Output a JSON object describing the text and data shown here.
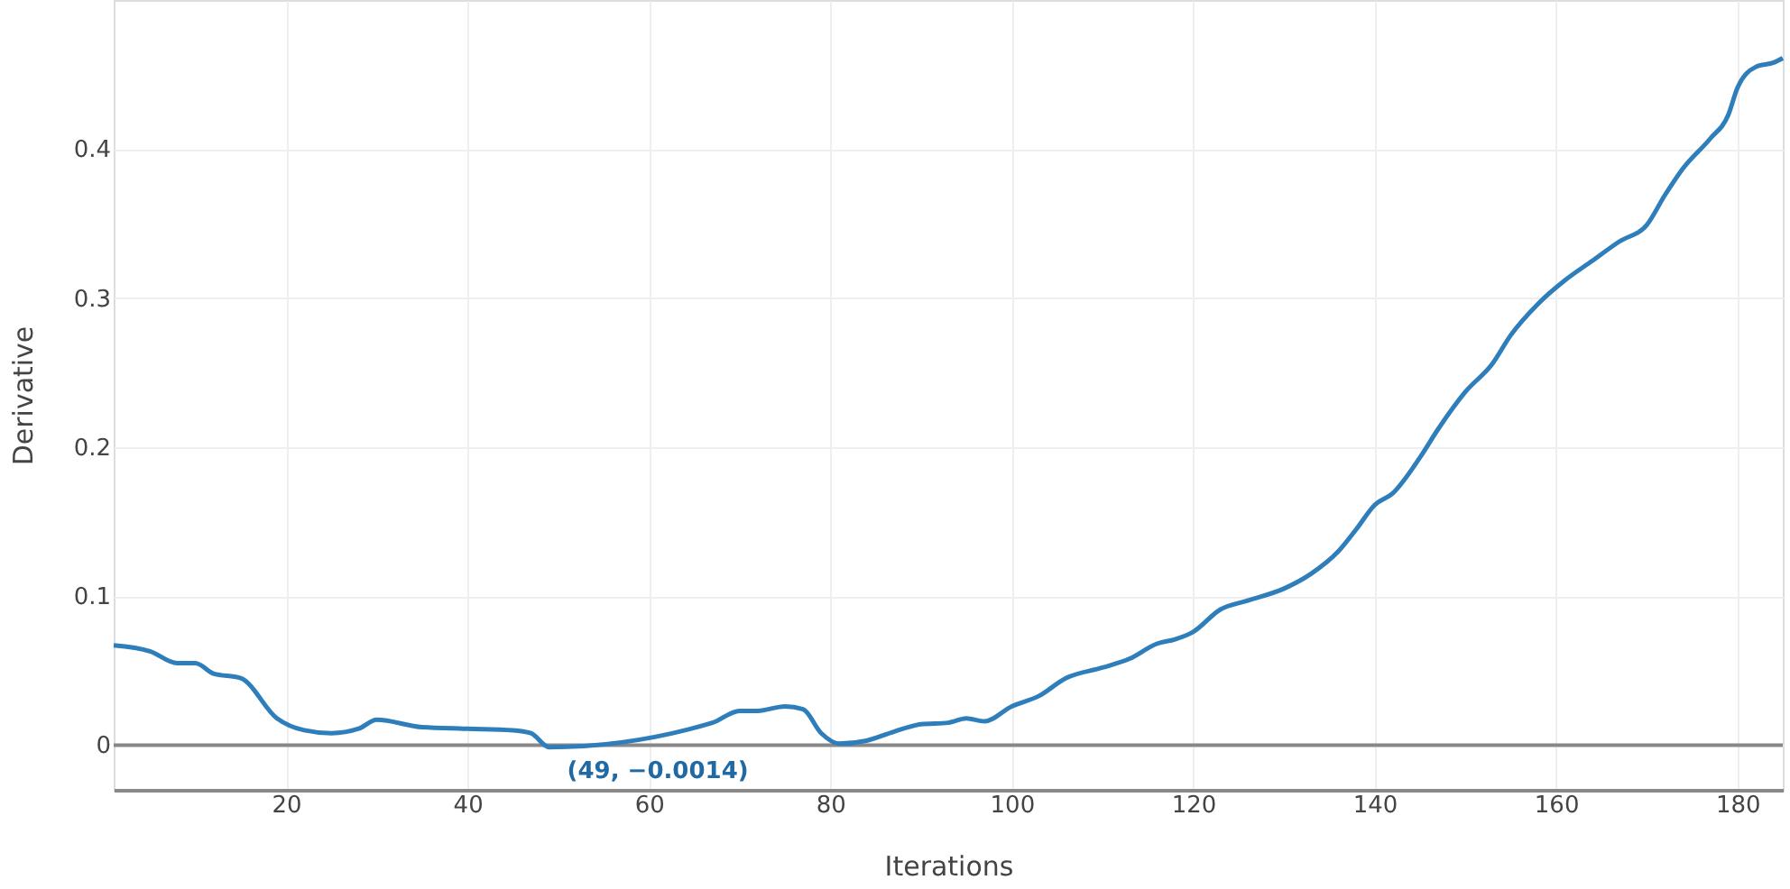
{
  "chart_data": {
    "type": "line",
    "xlabel": "Iterations",
    "ylabel": "Derivative",
    "x": [
      1,
      5,
      8,
      10,
      12,
      15,
      19,
      22,
      25,
      28,
      30,
      35,
      40,
      45,
      47,
      49,
      67,
      70,
      72,
      75,
      77,
      79,
      81,
      84,
      87,
      90,
      93,
      95,
      97,
      100,
      103,
      106,
      110,
      113,
      116,
      118,
      120,
      123,
      126,
      130,
      133,
      136,
      138,
      140,
      142,
      145,
      147,
      150,
      153,
      155,
      158,
      161,
      164,
      167,
      170,
      172,
      174,
      177,
      179,
      180,
      182,
      184,
      185
    ],
    "series": [
      {
        "color": "#2e7ebb",
        "values": [
          0.067,
          0.063,
          0.055,
          0.055,
          0.048,
          0.045,
          0.018,
          0.01,
          0.008,
          0.011,
          0.017,
          0.012,
          0.011,
          0.01,
          0.008,
          -0.0014,
          0.015,
          0.023,
          0.023,
          0.026,
          0.024,
          0.008,
          0.001,
          0.003,
          0.009,
          0.014,
          0.015,
          0.018,
          0.016,
          0.026,
          0.033,
          0.045,
          0.052,
          0.058,
          0.068,
          0.071,
          0.076,
          0.091,
          0.097,
          0.105,
          0.115,
          0.13,
          0.145,
          0.161,
          0.169,
          0.193,
          0.212,
          0.237,
          0.256,
          0.275,
          0.296,
          0.312,
          0.325,
          0.338,
          0.349,
          0.369,
          0.387,
          0.407,
          0.423,
          0.441,
          0.455,
          0.458,
          0.461
        ]
      }
    ],
    "xlim": [
      1,
      185
    ],
    "xticks": [
      20,
      40,
      60,
      80,
      100,
      120,
      140,
      160,
      180
    ],
    "ylim": [
      -0.03,
      0.5
    ],
    "yticks": [
      0,
      0.1,
      0.2,
      0.3,
      0.4
    ],
    "grid": true,
    "line_style": "solid",
    "marker": "none",
    "ref_lines": [
      {
        "axis": "y",
        "value": 0,
        "color": "#888888"
      }
    ],
    "annotations": [
      {
        "text": "(49, −0.0014)",
        "x": 49,
        "y": -0.0014
      }
    ]
  }
}
